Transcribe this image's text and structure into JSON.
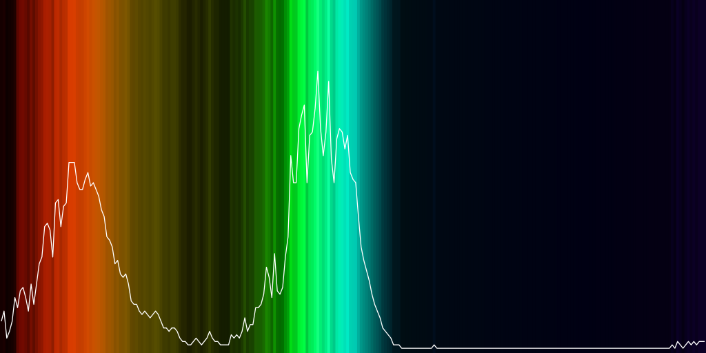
{
  "chart_data": {
    "type": "line",
    "title": "",
    "xlabel": "",
    "ylabel": "",
    "grid": false,
    "legend": "none",
    "x_range": [
      0,
      255
    ],
    "ylim": [
      0,
      100
    ],
    "line_color": "#ffffff",
    "background_color": "#000000",
    "series": [
      {
        "values": [
          9,
          12,
          4,
          6,
          9,
          16,
          13,
          18,
          19,
          16,
          12,
          20,
          14,
          20,
          26,
          28,
          37,
          38,
          36,
          28,
          44,
          45,
          37,
          43,
          44,
          56,
          56,
          56,
          50,
          48,
          48,
          51,
          53,
          49,
          50,
          48,
          46,
          42,
          40,
          34,
          33,
          31,
          26,
          27,
          23,
          22,
          23,
          20,
          15,
          14,
          14,
          12,
          11,
          12,
          11,
          10,
          11,
          12,
          11,
          9,
          7,
          7,
          6,
          7,
          7,
          6,
          4,
          3,
          3,
          2,
          2,
          3,
          4,
          3,
          2,
          3,
          4,
          6,
          4,
          3,
          3,
          2,
          2,
          2,
          2,
          5,
          4,
          5,
          4,
          6,
          10,
          6,
          8,
          8,
          13,
          13,
          14,
          17,
          25,
          22,
          16,
          29,
          18,
          17,
          19,
          28,
          34,
          58,
          50,
          50,
          66,
          70,
          73,
          50,
          64,
          65,
          72,
          83,
          66,
          58,
          65,
          80,
          57,
          50,
          63,
          66,
          65,
          60,
          64,
          53,
          51,
          50,
          40,
          31,
          27,
          24,
          21,
          17,
          14,
          12,
          10,
          7,
          6,
          5,
          4,
          2,
          2,
          2,
          1,
          1,
          1,
          1,
          1,
          1,
          1,
          1,
          1,
          1,
          1,
          1,
          2,
          1,
          1,
          1,
          1,
          1,
          1,
          1,
          1,
          1,
          1,
          1,
          1,
          1,
          1,
          1,
          1,
          1,
          1,
          1,
          1,
          1,
          1,
          1,
          1,
          1,
          1,
          1,
          1,
          1,
          1,
          1,
          1,
          1,
          1,
          1,
          1,
          1,
          1,
          1,
          1,
          1,
          1,
          1,
          1,
          1,
          1,
          1,
          1,
          1,
          1,
          1,
          1,
          1,
          1,
          1,
          1,
          1,
          1,
          1,
          1,
          1,
          1,
          1,
          1,
          1,
          1,
          1,
          1,
          1,
          1,
          1,
          1,
          1,
          1,
          1,
          1,
          1,
          1,
          1,
          1,
          1,
          1,
          1,
          1,
          1,
          1,
          1,
          2,
          1,
          3,
          2,
          1,
          2,
          3,
          2,
          3,
          2,
          3,
          3,
          3
        ],
        "color": "#ffffff"
      }
    ]
  }
}
